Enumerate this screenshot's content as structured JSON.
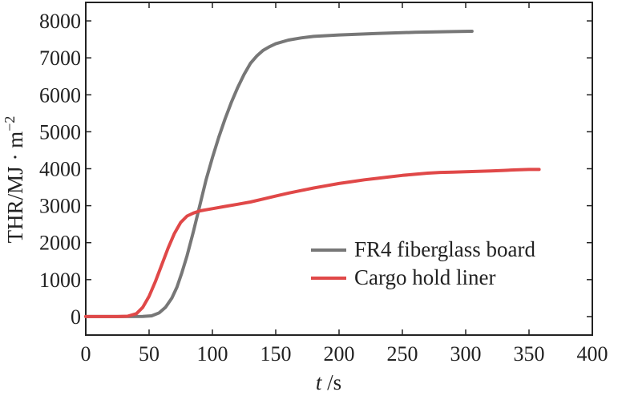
{
  "chart_data": {
    "type": "line",
    "xlabel_italic": "t",
    "xlabel_unit": " /s",
    "ylabel_main": "THR/MJ · m",
    "ylabel_sup": "−2",
    "xlim": [
      0,
      400
    ],
    "ylim": [
      -500,
      8500
    ],
    "x_ticks": [
      0,
      50,
      100,
      150,
      200,
      250,
      300,
      350,
      400
    ],
    "y_ticks": [
      0,
      1000,
      2000,
      3000,
      4000,
      5000,
      6000,
      7000,
      8000
    ],
    "grid": false,
    "legend_position": "bottom-right",
    "series": [
      {
        "name": "FR4 fiberglass board",
        "color": "#777777",
        "points": [
          [
            0,
            0
          ],
          [
            30,
            0
          ],
          [
            45,
            5
          ],
          [
            52,
            20
          ],
          [
            58,
            100
          ],
          [
            63,
            250
          ],
          [
            68,
            500
          ],
          [
            72,
            800
          ],
          [
            76,
            1200
          ],
          [
            80,
            1650
          ],
          [
            85,
            2300
          ],
          [
            90,
            3000
          ],
          [
            95,
            3700
          ],
          [
            100,
            4300
          ],
          [
            105,
            4850
          ],
          [
            110,
            5350
          ],
          [
            115,
            5800
          ],
          [
            120,
            6200
          ],
          [
            125,
            6550
          ],
          [
            130,
            6850
          ],
          [
            135,
            7050
          ],
          [
            140,
            7200
          ],
          [
            145,
            7300
          ],
          [
            150,
            7380
          ],
          [
            160,
            7480
          ],
          [
            170,
            7540
          ],
          [
            180,
            7580
          ],
          [
            200,
            7620
          ],
          [
            230,
            7660
          ],
          [
            260,
            7690
          ],
          [
            290,
            7710
          ],
          [
            305,
            7720
          ]
        ]
      },
      {
        "name": "Cargo hold liner",
        "color": "#e04848",
        "points": [
          [
            0,
            0
          ],
          [
            25,
            0
          ],
          [
            33,
            10
          ],
          [
            40,
            80
          ],
          [
            45,
            250
          ],
          [
            50,
            550
          ],
          [
            55,
            950
          ],
          [
            60,
            1400
          ],
          [
            65,
            1850
          ],
          [
            70,
            2250
          ],
          [
            75,
            2550
          ],
          [
            80,
            2720
          ],
          [
            85,
            2800
          ],
          [
            90,
            2860
          ],
          [
            100,
            2920
          ],
          [
            110,
            2980
          ],
          [
            120,
            3040
          ],
          [
            130,
            3100
          ],
          [
            140,
            3180
          ],
          [
            150,
            3260
          ],
          [
            160,
            3340
          ],
          [
            170,
            3410
          ],
          [
            180,
            3480
          ],
          [
            190,
            3540
          ],
          [
            200,
            3600
          ],
          [
            210,
            3650
          ],
          [
            220,
            3700
          ],
          [
            230,
            3740
          ],
          [
            240,
            3780
          ],
          [
            250,
            3820
          ],
          [
            260,
            3850
          ],
          [
            270,
            3880
          ],
          [
            280,
            3900
          ],
          [
            290,
            3910
          ],
          [
            300,
            3920
          ],
          [
            310,
            3930
          ],
          [
            320,
            3940
          ],
          [
            330,
            3955
          ],
          [
            340,
            3970
          ],
          [
            350,
            3980
          ],
          [
            358,
            3980
          ]
        ]
      }
    ]
  }
}
